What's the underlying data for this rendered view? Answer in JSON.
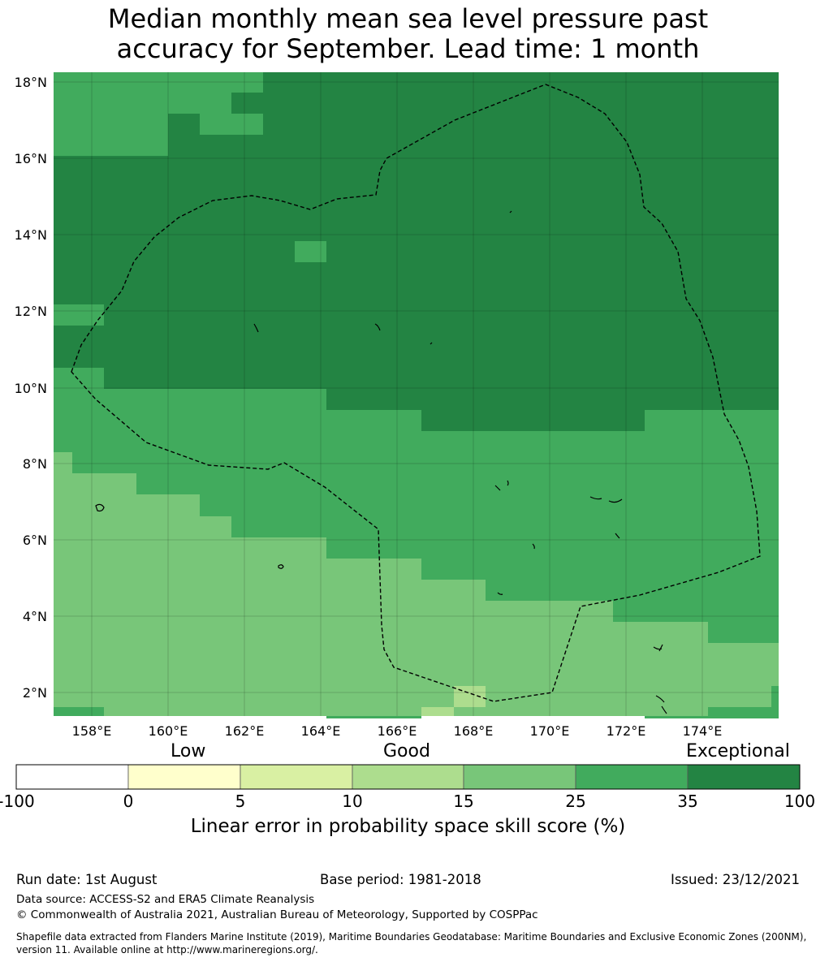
{
  "title_line1": "Median monthly mean sea level pressure past",
  "title_line2": "accuracy for September. Lead time: 1 month",
  "lat_labels": [
    "18°N",
    "16°N",
    "14°N",
    "12°N",
    "10°N",
    "8°N",
    "6°N",
    "4°N",
    "2°N"
  ],
  "lon_labels": [
    "158°E",
    "160°E",
    "162°E",
    "164°E",
    "166°E",
    "168°E",
    "170°E",
    "172°E",
    "174°E"
  ],
  "colorbar": {
    "categories": [
      "Low",
      "Good",
      "Exceptional"
    ],
    "ticks": [
      "-100",
      "0",
      "5",
      "10",
      "15",
      "25",
      "35",
      "100"
    ],
    "colors": [
      "#ffffff",
      "#ffffcc",
      "#d9f0a3",
      "#addd8e",
      "#78c679",
      "#41ab5d",
      "#238443"
    ],
    "label": "Linear error in probability space skill score (%)"
  },
  "footer": {
    "run_date": "Run date: 1st August",
    "base_period": "Base period: 1981-2018",
    "issued": "Issued: 23/12/2021",
    "data_source": "Data source: ACCESS-S2 and ERA5 Climate Reanalysis",
    "copyright": "© Commonwealth of Australia 2021, Australian Bureau of Meteorology, Supported by COSPPac",
    "shapefile_line1": "Shapefile data extracted from Flanders Marine Institute (2019), Maritime Boundaries Geodatabase: Maritime Boundaries and Exclusive Economic Zones (200NM),",
    "shapefile_line2": "version 11. Available online at http://www.marineregions.org/."
  }
}
